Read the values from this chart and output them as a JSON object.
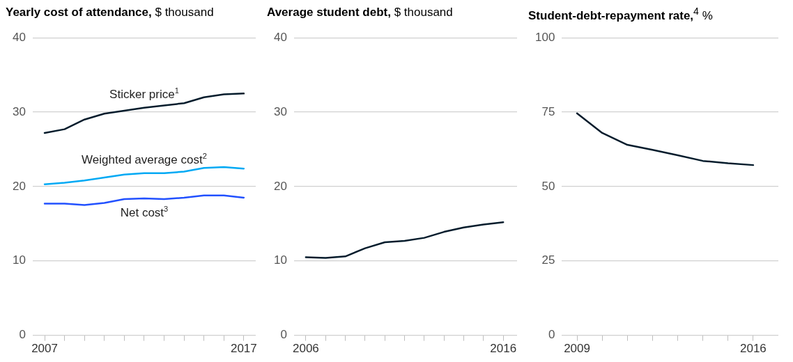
{
  "chart_data": [
    {
      "type": "line",
      "title": "Yearly cost of attendance, $ thousand",
      "x": [
        2007,
        2008,
        2009,
        2010,
        2011,
        2012,
        2013,
        2014,
        2015,
        2016,
        2017
      ],
      "series": [
        {
          "name": "Sticker price$^{1}$",
          "color": "#051c2c",
          "values": [
            27.2,
            27.7,
            29.0,
            29.8,
            30.2,
            30.6,
            30.9,
            31.2,
            32.0,
            32.4,
            32.5
          ]
        },
        {
          "name": "Weighted average cost$^{2}$",
          "color": "#00a9f4",
          "values": [
            20.3,
            20.5,
            20.8,
            21.2,
            21.6,
            21.8,
            21.8,
            22.0,
            22.5,
            22.6,
            22.4
          ]
        },
        {
          "name": "Net cost$^{3}$",
          "color": "#2251ff",
          "values": [
            17.7,
            17.7,
            17.5,
            17.8,
            18.3,
            18.4,
            18.3,
            18.5,
            18.8,
            18.8,
            18.5
          ]
        }
      ],
      "xlim": [
        2006.4,
        2017.6
      ],
      "xticks": [
        2007,
        {
          "value": 2008,
          "label": null
        },
        {
          "value": 2009,
          "label": null
        },
        {
          "value": 2010,
          "label": null
        },
        {
          "value": 2011,
          "label": null
        },
        {
          "value": 2012,
          "label": null
        },
        {
          "value": 2013,
          "label": null
        },
        {
          "value": 2014,
          "label": null
        },
        {
          "value": 2015,
          "label": null
        },
        {
          "value": 2016,
          "label": null
        },
        2017
      ],
      "ylim": [
        0,
        40
      ],
      "yticks": [
        0,
        10,
        20,
        30,
        40
      ],
      "grid": "y",
      "marker": "none",
      "line_style": "solid"
    },
    {
      "type": "line",
      "title": "Average student debt, $ thousand",
      "x": [
        2006,
        2007,
        2008,
        2009,
        2010,
        2011,
        2012,
        2013,
        2014,
        2015,
        2016
      ],
      "series": [
        {
          "color": "#051c2c",
          "values": [
            10.5,
            10.4,
            10.6,
            11.7,
            12.5,
            12.7,
            13.1,
            13.9,
            14.5,
            14.9,
            15.2
          ]
        }
      ],
      "xlim": [
        2005.4,
        2016.7
      ],
      "xticks": [
        2006,
        {
          "value": 2007,
          "label": null
        },
        {
          "value": 2008,
          "label": null
        },
        {
          "value": 2009,
          "label": null
        },
        {
          "value": 2010,
          "label": null
        },
        {
          "value": 2011,
          "label": null
        },
        {
          "value": 2012,
          "label": null
        },
        {
          "value": 2013,
          "label": null
        },
        {
          "value": 2014,
          "label": null
        },
        {
          "value": 2015,
          "label": null
        },
        2016
      ],
      "ylim": [
        0,
        40
      ],
      "yticks": [
        0,
        10,
        20,
        30,
        40
      ],
      "grid": "y",
      "marker": "none",
      "line_style": "solid"
    },
    {
      "type": "line",
      "title": "Student-debt-repayment rate,$^{4}$ %",
      "x": [
        2009,
        2010,
        2011,
        2012,
        2013,
        2014,
        2015,
        2016
      ],
      "series": [
        {
          "color": "#051c2c",
          "values": [
            74.6,
            68,
            64,
            62.3,
            60.5,
            58.6,
            57.8,
            57.2
          ]
        }
      ],
      "xlim": [
        2008.4,
        2017.0
      ],
      "xticks": [
        2009,
        {
          "value": 2010,
          "label": null
        },
        {
          "value": 2011,
          "label": null
        },
        {
          "value": 2012,
          "label": null
        },
        {
          "value": 2013,
          "label": null
        },
        {
          "value": 2014,
          "label": null
        },
        {
          "value": 2015,
          "label": null
        },
        2016
      ],
      "ylim": [
        0,
        100
      ],
      "yticks": [
        0,
        25,
        50,
        75,
        100
      ],
      "grid": "y",
      "marker": "none",
      "line_style": "solid"
    }
  ]
}
